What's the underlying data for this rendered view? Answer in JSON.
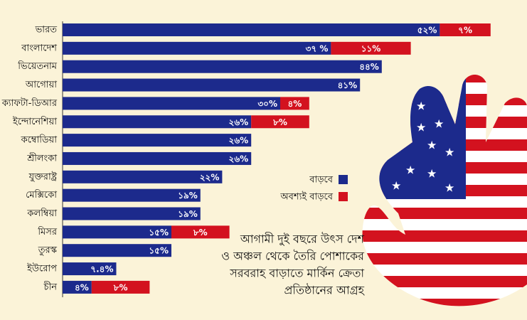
{
  "chart_data": {
    "type": "stacked-bar-horizontal",
    "categories": [
      "ভারত",
      "বাংলাদেশ",
      "ভিয়েতনাম",
      "আগোয়া",
      "ক্যাফটা-ডিআর",
      "ইন্দোনেশিয়া",
      "কম্বোডিয়া",
      "শ্রীলংকা",
      "যুক্তরাষ্ট্র",
      "মেক্সিকো",
      "কলম্বিয়া",
      "মিসর",
      "তুরস্ক",
      "ইউরোপ",
      "চীন"
    ],
    "series": [
      {
        "name": "বাড়বে",
        "color": "#1c2a8c",
        "values": [
          52,
          37,
          44,
          41,
          30,
          26,
          26,
          26,
          22,
          19,
          19,
          15,
          15,
          7.4,
          4
        ],
        "value_labels": [
          "৫২%",
          "৩৭ %",
          "৪৪%",
          "৪১%",
          "৩০%",
          "২৬%",
          "২৬%",
          "২৬%",
          "২২%",
          "১৯%",
          "১৯%",
          "১৫%",
          "১৫%",
          "৭.৪%",
          "৪%"
        ]
      },
      {
        "name": "অবশ্যই বাড়বে",
        "color": "#d3121f",
        "values": [
          7,
          11,
          null,
          null,
          4,
          8,
          null,
          null,
          null,
          null,
          null,
          8,
          null,
          null,
          8
        ],
        "value_labels": [
          "৭%",
          "১১%",
          null,
          null,
          "৪%",
          "৮%",
          null,
          null,
          null,
          null,
          null,
          "৮%",
          null,
          null,
          "৮%"
        ]
      }
    ],
    "xlim": [
      0,
      60
    ],
    "annotation": [
      "আগামী দুই বছরে উৎস দেশ",
      "ও অঞ্চল থেকে তৈরি পোশাকের",
      "সরবরাহ বাড়াতে মার্কিন ক্রেতা",
      "প্রতিষ্ঠানের আগ্রহ"
    ]
  }
}
